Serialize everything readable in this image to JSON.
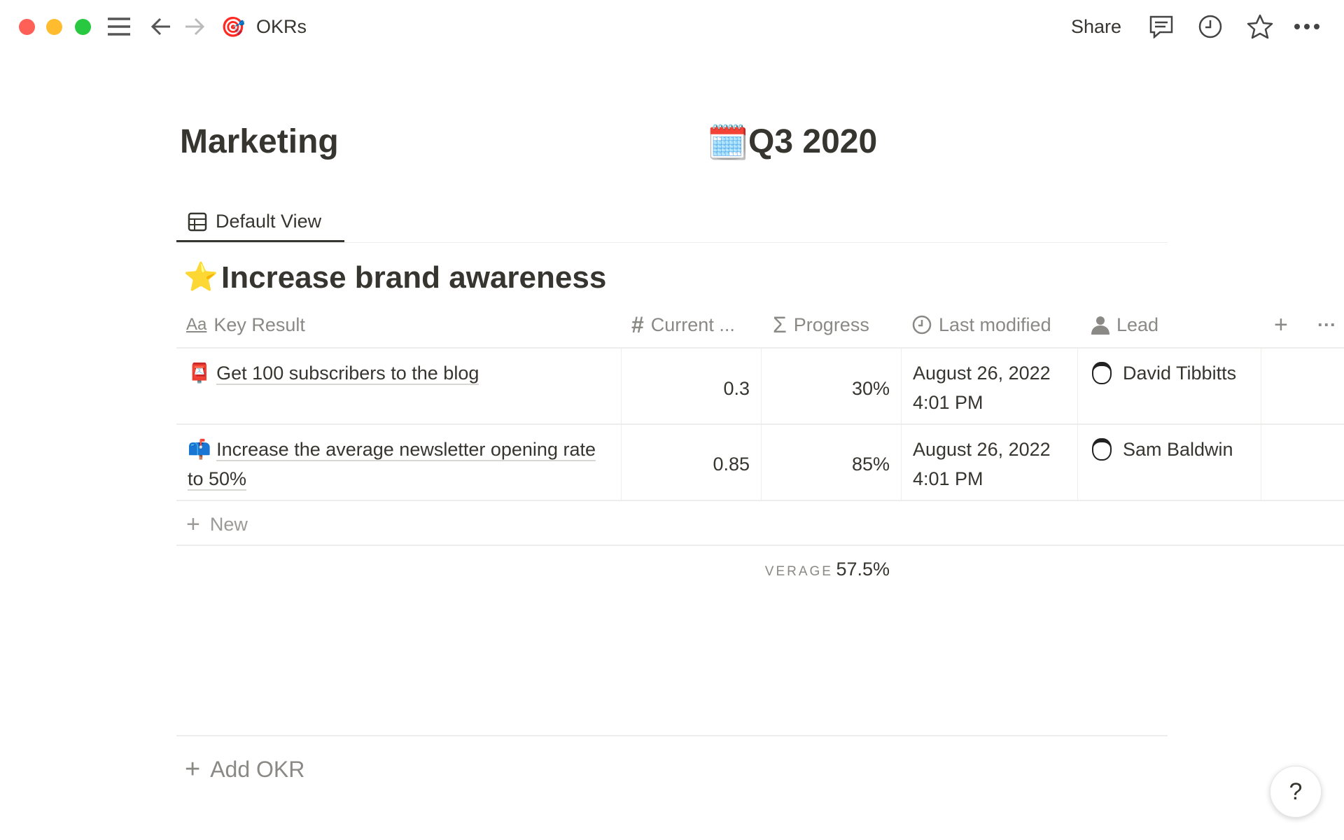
{
  "topbar": {
    "breadcrumb": "OKRs",
    "breadcrumb_icon": "🎯",
    "share": "Share"
  },
  "page": {
    "title_left": "Marketing",
    "title_right": "Q3 2020",
    "title_right_icon": "🗓️"
  },
  "view": {
    "tab": "Default View"
  },
  "section": {
    "icon": "⭐",
    "title": "Increase brand awareness"
  },
  "table": {
    "columns": [
      {
        "label": "Key Result",
        "icon": "Aa"
      },
      {
        "label": "Current ...",
        "icon": "#"
      },
      {
        "label": "Progress",
        "icon": "Σ"
      },
      {
        "label": "Last modified",
        "icon": "clock-icon"
      },
      {
        "label": "Lead",
        "icon": "person-icon"
      }
    ],
    "rows": [
      {
        "icon": "📮",
        "key_result": "Get 100 subscribers to the blog",
        "current": "0.3",
        "progress": "30%",
        "date": "August 26, 2022",
        "time": "4:01 PM",
        "lead": "David Tibbitts"
      },
      {
        "icon": "📫",
        "key_result": "Increase the average newsletter opening rate to 50%",
        "current": "0.85",
        "progress": "85%",
        "date": "August 26, 2022",
        "time": "4:01 PM",
        "lead": "Sam Baldwin"
      }
    ],
    "new_label": "New",
    "average_label": "VERAGE",
    "average_value": "57.5%"
  },
  "add_okr": "Add OKR",
  "help": "?"
}
